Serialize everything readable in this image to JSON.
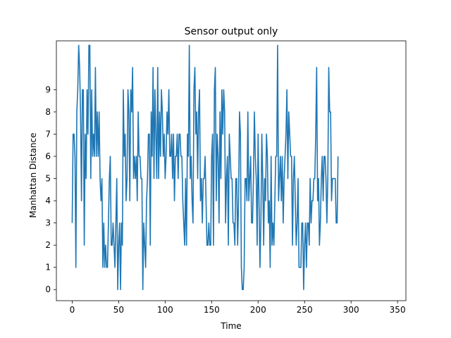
{
  "chart_data": {
    "type": "line",
    "title": "Sensor output only",
    "xlabel": "Time",
    "ylabel": "Manhattan Distance",
    "xlim": [
      -17,
      359
    ],
    "ylim": [
      -0.5,
      11.2
    ],
    "xticks": [
      0,
      50,
      100,
      150,
      200,
      250,
      300,
      350
    ],
    "yticks": [
      0,
      1,
      2,
      3,
      4,
      5,
      6,
      7,
      8,
      9
    ],
    "grid": false,
    "series": [
      {
        "color": "#1f77b4",
        "x_start": 0,
        "x_step": 1,
        "values": [
          3,
          7,
          7,
          6,
          1,
          8,
          9,
          11,
          10,
          8,
          4,
          9,
          9,
          2,
          7,
          5,
          9,
          7,
          11,
          11,
          5,
          9,
          6,
          7,
          6,
          10,
          6,
          8,
          6,
          8,
          5,
          4,
          5,
          1,
          3,
          1,
          2,
          1,
          1,
          3,
          5,
          6,
          2,
          2,
          3,
          2,
          1,
          3,
          5,
          0,
          2,
          3,
          0,
          3,
          2,
          9,
          6,
          7,
          4,
          5,
          9,
          8,
          4,
          9,
          8,
          10,
          5,
          6,
          5,
          6,
          4,
          8,
          6,
          6,
          5,
          5,
          0,
          3,
          2,
          1,
          4,
          5,
          7,
          7,
          2,
          8,
          6,
          10,
          5,
          9,
          7,
          5,
          10,
          5,
          8,
          6,
          9,
          8,
          6,
          7,
          5,
          6,
          8,
          7,
          9,
          6,
          6,
          7,
          5,
          7,
          4,
          6,
          6,
          7,
          5,
          7,
          7,
          6,
          6,
          4,
          3,
          2,
          5,
          2,
          7,
          6,
          11,
          5,
          6,
          4,
          3,
          9,
          10,
          7,
          8,
          5,
          8,
          9,
          4,
          5,
          3,
          5,
          5,
          6,
          4,
          2,
          2,
          3,
          2,
          2,
          6,
          7,
          2,
          9,
          10,
          4,
          7,
          6,
          3,
          8,
          5,
          9,
          7,
          9,
          8,
          3,
          5,
          6,
          2,
          7,
          6,
          5,
          5,
          3,
          3,
          2,
          5,
          5,
          2,
          4,
          8,
          7,
          1,
          0,
          0,
          1,
          5,
          5,
          4,
          8,
          4,
          5,
          6,
          3,
          3,
          5,
          8,
          6,
          5,
          2,
          7,
          4,
          1,
          3,
          7,
          5,
          2,
          5,
          4,
          7,
          6,
          3,
          4,
          1,
          6,
          2,
          3,
          2,
          4,
          6,
          6,
          11,
          4,
          5,
          6,
          4,
          6,
          3,
          5,
          6,
          7,
          9,
          5,
          8,
          7,
          6,
          6,
          2,
          5,
          6,
          4,
          2,
          3,
          5,
          1,
          1,
          1,
          3,
          3,
          0,
          2,
          3,
          1,
          3,
          3,
          2,
          5,
          3,
          4,
          4,
          5,
          5,
          7,
          10,
          4,
          5,
          2,
          3,
          5,
          6,
          4,
          6,
          6,
          5,
          3,
          5,
          10,
          8,
          8,
          4,
          5,
          5,
          5,
          5,
          3,
          3,
          6
        ]
      }
    ]
  }
}
